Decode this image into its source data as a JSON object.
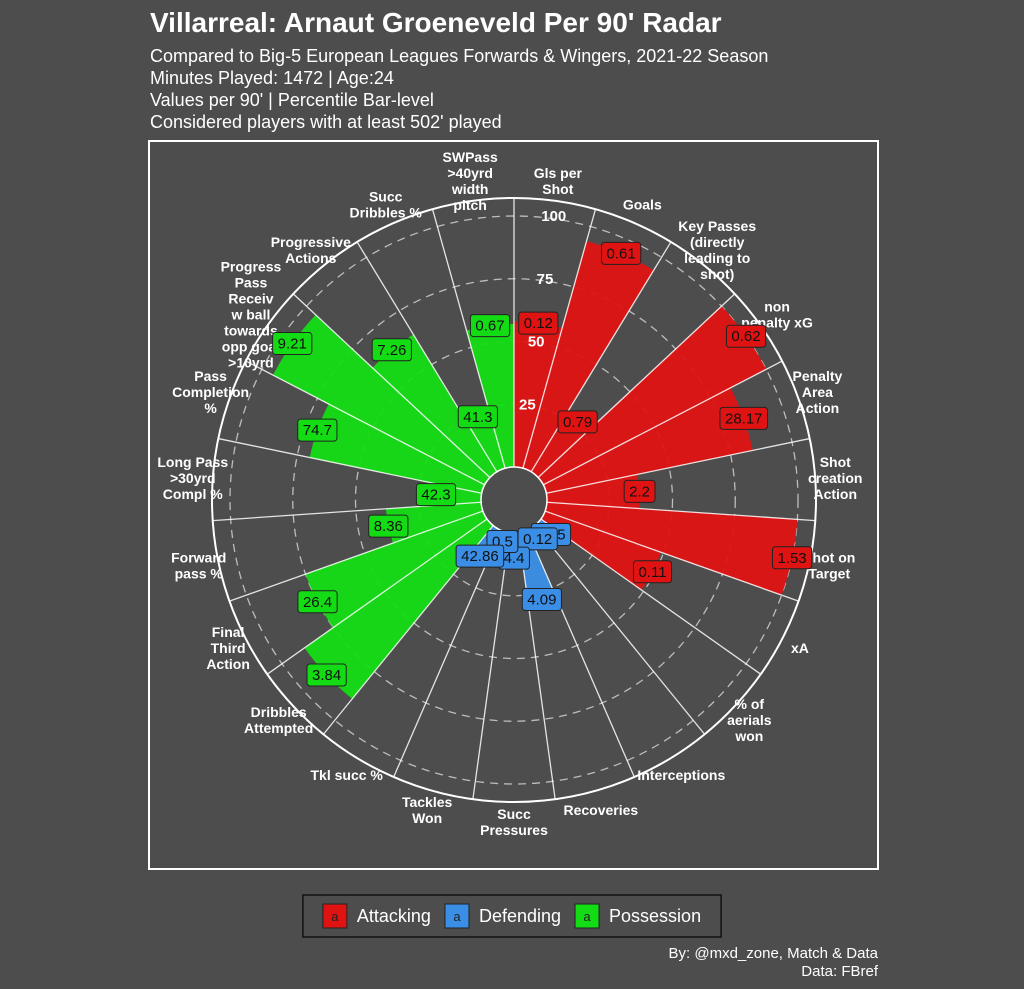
{
  "chart_data": {
    "type": "radial_bar",
    "title": "Villarreal: Arnaut Groeneveld Per 90' Radar",
    "subtitle": [
      "Compared to Big-5 European Leagues Forwards & Wingers, 2021-22 Season",
      "Minutes Played: 1472 | Age:24",
      "Values per 90' | Percentile Bar-level",
      "Considered players with at least 502' played"
    ],
    "caption": [
      "By: @mxd_zone, Match & Data",
      "Data: FBref"
    ],
    "categories": [
      "Gls per\nShot",
      "Goals",
      "Key Passes\n(directly\nleading to\nshot)",
      "non\npenalty xG",
      "Penalty\nArea\nAction",
      "Shot\ncreation\nAction",
      "Shot on\nTarget",
      "xA",
      "% of\naerials\nwon",
      "Interceptions",
      "Recoveries",
      "Succ\nPressures",
      "Tackles\nWon",
      "Tkl succ %",
      "Dribbles\nAttempted",
      "Final\nThird\nAction",
      "Forward\npass %",
      "Long Pass\n>30yrd\nCompl %",
      "Pass\nCompletion\n%",
      "Progress\nPass\nReceiv\nw ball\ntowards\nopp goal\n>10yrd",
      "Progressive\nActions",
      "Succ\nDribbles %",
      "SWPass\n>40yrd\nwidth\npitch"
    ],
    "series": [
      {
        "name": "Attacking",
        "color": "#e01313",
        "values": [
          0.12,
          0.61,
          0.79,
          0.62,
          28.17,
          2.2,
          1.53,
          0.11,
          null,
          null,
          null,
          null,
          null,
          null,
          null,
          null,
          null,
          null,
          null,
          null,
          null,
          null,
          null
        ],
        "percentiles": [
          58,
          94,
          27,
          100,
          84,
          37,
          100,
          49,
          null,
          null,
          null,
          null,
          null,
          null,
          null,
          null,
          null,
          null,
          null,
          null,
          null,
          null,
          null
        ]
      },
      {
        "name": "Defending",
        "color": "#3a8ee6",
        "values": [
          null,
          null,
          null,
          null,
          null,
          null,
          null,
          null,
          12.5,
          0.12,
          4.09,
          4.4,
          0.5,
          42.86,
          null,
          null,
          null,
          null,
          null,
          null,
          null,
          null,
          null
        ],
        "percentiles": [
          null,
          null,
          null,
          null,
          null,
          null,
          null,
          null,
          7,
          5,
          28,
          10,
          4,
          13,
          null,
          null,
          null,
          null,
          null,
          null,
          null,
          null,
          null
        ]
      },
      {
        "name": "Possession",
        "color": "#14dc14",
        "values": [
          null,
          null,
          null,
          null,
          null,
          null,
          null,
          null,
          null,
          null,
          null,
          null,
          null,
          null,
          3.84,
          26.4,
          8.36,
          42.3,
          74.7,
          9.21,
          7.26,
          41.3,
          0.67
        ],
        "percentiles": [
          null,
          null,
          null,
          null,
          null,
          null,
          null,
          null,
          null,
          null,
          null,
          null,
          null,
          null,
          89,
          75,
          38,
          18,
          70,
          95,
          64,
          23,
          57
        ]
      }
    ],
    "rlim": [
      0,
      100
    ],
    "rticks": [
      25,
      50,
      75,
      100
    ],
    "legend_key_label": "a",
    "legend_position": "bottom"
  }
}
